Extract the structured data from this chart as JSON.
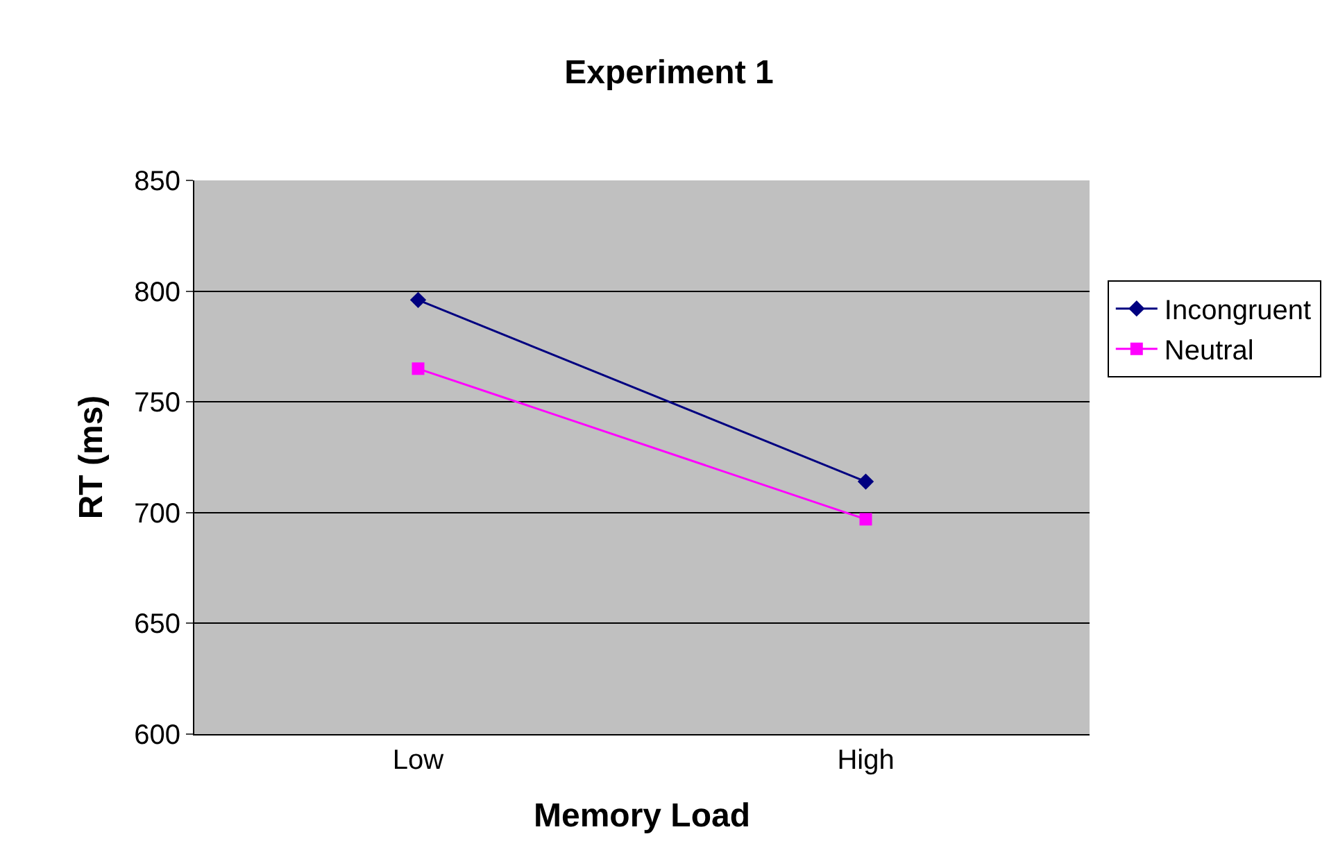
{
  "chart_data": {
    "type": "line",
    "title": "Experiment 1",
    "xlabel": "Memory Load",
    "ylabel": "RT (ms)",
    "categories": [
      "Low",
      "High"
    ],
    "series": [
      {
        "name": "Incongruent",
        "color": "#000080",
        "marker": "diamond",
        "values": [
          796,
          714
        ]
      },
      {
        "name": "Neutral",
        "color": "#ff00ff",
        "marker": "square",
        "values": [
          765,
          697
        ]
      }
    ],
    "ylim": [
      600,
      850
    ],
    "yticks": [
      600,
      650,
      700,
      750,
      800,
      850
    ],
    "grid": "y",
    "legend": "right"
  }
}
